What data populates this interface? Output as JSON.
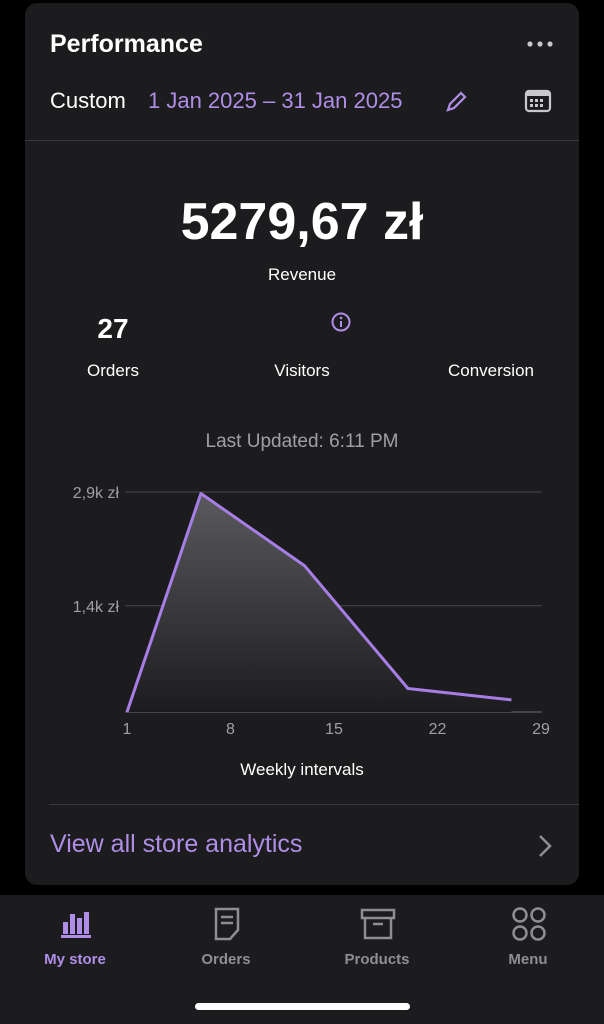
{
  "header": {
    "title": "Performance",
    "range_label": "Custom",
    "date_range": "1 Jan 2025 – 31 Jan 2025"
  },
  "revenue": {
    "value": "5279,67 zł",
    "label": "Revenue"
  },
  "stats": [
    {
      "value": "27",
      "label": "Orders"
    },
    {
      "label": "Visitors"
    },
    {
      "label": "Conversion"
    }
  ],
  "last_updated": "Last Updated: 6:11 PM",
  "chart_data": {
    "type": "area",
    "x": [
      1,
      6,
      13,
      20,
      27
    ],
    "values": [
      0,
      2880,
      1930,
      310,
      160
    ],
    "xlim": [
      1,
      29
    ],
    "ylim": [
      0,
      2900
    ],
    "xticks": [
      1,
      8,
      15,
      22,
      29
    ],
    "yticks": [
      {
        "value": 1400,
        "label": "1,4k zł"
      },
      {
        "value": 2900,
        "label": "2,9k zł"
      }
    ],
    "x_label": "Weekly intervals",
    "color": "#a67ee6",
    "grid": true
  },
  "link": "View all store analytics",
  "tabs": [
    "My store",
    "Orders",
    "Products",
    "Menu"
  ]
}
